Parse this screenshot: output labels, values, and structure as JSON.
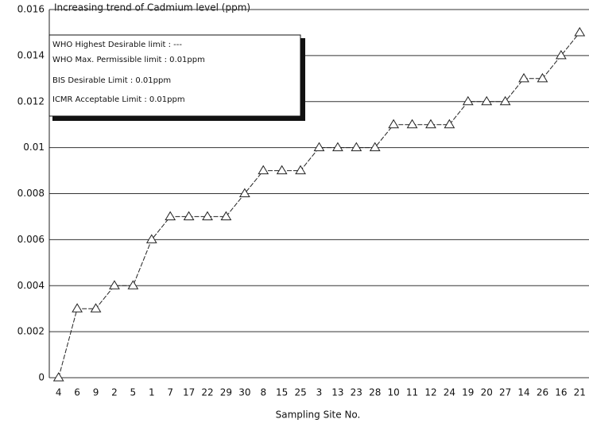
{
  "chart_data": {
    "type": "line",
    "title": "Increasing trend of Cadmium level (ppm)",
    "x_label": "Sampling Site No.",
    "annotations": [
      "WHO Highest Desirable limit : ---",
      "WHO Max. Permissible limit : 0.01ppm",
      "BIS Desirable Limit : 0.01ppm",
      "ICMR Acceptable Limit : 0.01ppm"
    ],
    "categories": [
      "4",
      "6",
      "9",
      "2",
      "5",
      "1",
      "7",
      "17",
      "22",
      "29",
      "30",
      "8",
      "15",
      "25",
      "3",
      "13",
      "23",
      "28",
      "10",
      "11",
      "12",
      "24",
      "19",
      "20",
      "27",
      "14",
      "26",
      "16",
      "21"
    ],
    "values": [
      0,
      0.003,
      0.003,
      0.004,
      0.004,
      0.006,
      0.007,
      0.007,
      0.007,
      0.007,
      0.008,
      0.009,
      0.009,
      0.009,
      0.01,
      0.01,
      0.01,
      0.01,
      0.011,
      0.011,
      0.011,
      0.011,
      0.012,
      0.012,
      0.012,
      0.013,
      0.013,
      0.014,
      0.015
    ],
    "color": "#222222",
    "marker": "triangle",
    "ylim": [
      0,
      0.016
    ],
    "yticks": [
      0,
      0.002,
      0.004,
      0.006,
      0.008,
      0.01,
      0.012,
      0.014,
      0.016
    ],
    "grid": true
  }
}
